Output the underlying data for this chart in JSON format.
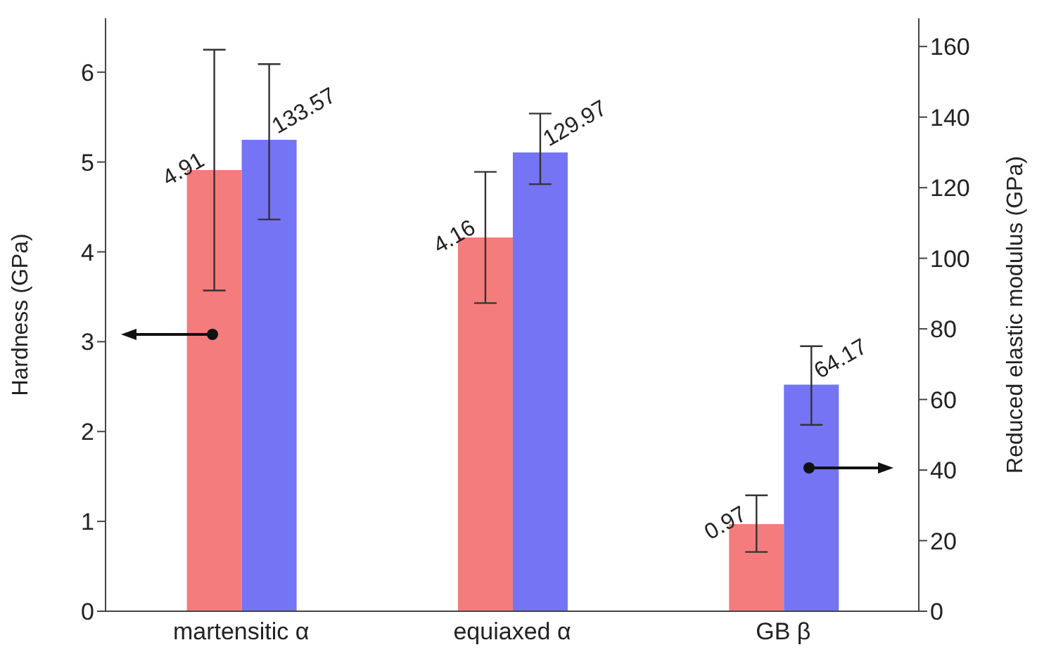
{
  "chart_data": {
    "type": "bar",
    "ylabel": "Hardness (GPa)",
    "y2label": "Reduced elastic modulus (GPa)",
    "categories": [
      "martensitic α",
      "equiaxed α",
      "GB β"
    ],
    "series": [
      {
        "color": "#f47c7c",
        "values": [
          4.91,
          4.16,
          0.97
        ],
        "errors": [
          [
            3.57,
            6.25
          ],
          [
            3.43,
            4.89
          ],
          [
            0.66,
            1.29
          ]
        ]
      },
      {
        "color": "#7474f4",
        "axis": "y2",
        "values": [
          133.57,
          129.97,
          64.17
        ],
        "errors": [
          [
            111,
            155
          ],
          [
            121,
            141
          ],
          [
            52.8,
            75.1
          ]
        ]
      }
    ],
    "ylim": [
      0,
      6.6
    ],
    "yticks": [
      0,
      1,
      2,
      3,
      4,
      5,
      6
    ],
    "y2lim": [
      0,
      168
    ],
    "y2ticks": [
      0,
      20,
      40,
      60,
      80,
      100,
      120,
      140,
      160
    ],
    "data_labels": true,
    "grid": false,
    "legend": false
  }
}
